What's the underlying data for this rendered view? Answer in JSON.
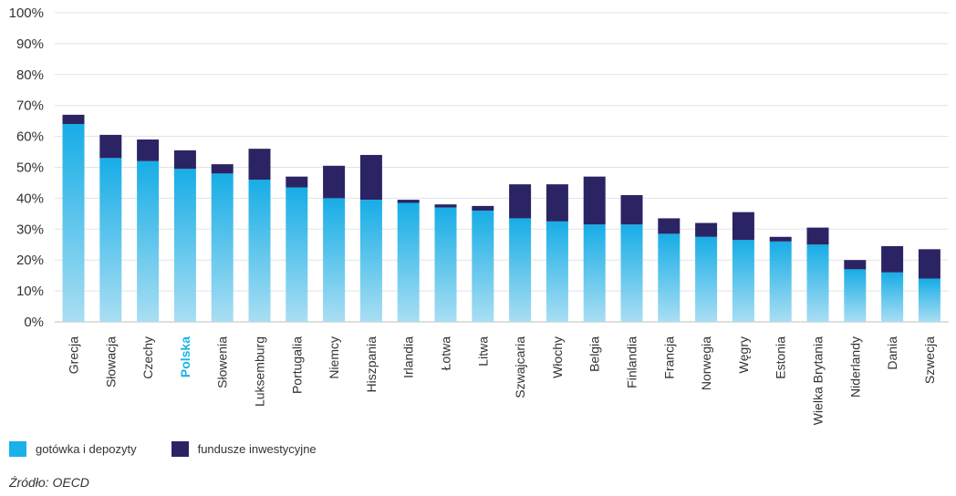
{
  "chart_data": {
    "type": "bar",
    "stacked": true,
    "categories": [
      "Grecja",
      "Słowacja",
      "Czechy",
      "Polska",
      "Słowenia",
      "Luksemburg",
      "Portugalia",
      "Niemcy",
      "Hiszpania",
      "Irlandia",
      "Łotwa",
      "Litwa",
      "Szwajcaria",
      "Włochy",
      "Belgia",
      "Finlandia",
      "Francja",
      "Norwegia",
      "Węgry",
      "Estonia",
      "Wielka Brytania",
      "Niderlandy",
      "Dania",
      "Szwecja"
    ],
    "highlight_category": "Polska",
    "series": [
      {
        "name": "gotówka i depozyty",
        "color": "#1ab0e8",
        "values": [
          64,
          53,
          52,
          49.5,
          48,
          46,
          43.5,
          40,
          39.5,
          38.5,
          37,
          36,
          33.5,
          32.5,
          31.5,
          31.5,
          28.5,
          27.5,
          26.5,
          26,
          25,
          17,
          16,
          14
        ]
      },
      {
        "name": "fundusze inwestycyjne",
        "color": "#2b2464",
        "values": [
          3,
          7.5,
          7,
          6,
          3,
          10,
          3.5,
          10.5,
          14.5,
          1,
          1,
          1.5,
          11,
          12,
          15.5,
          9.5,
          5,
          4.5,
          9,
          1.5,
          5.5,
          3,
          8.5,
          9.5
        ]
      }
    ],
    "yticks": [
      "0%",
      "10%",
      "20%",
      "30%",
      "40%",
      "50%",
      "60%",
      "70%",
      "80%",
      "90%",
      "100%"
    ],
    "ylim": [
      0,
      100
    ],
    "grid": true,
    "legend_position": "bottom-left"
  },
  "legend": {
    "items": [
      {
        "label": "gotówka i depozyty",
        "color": "#1ab0e8"
      },
      {
        "label": "fundusze inwestycyjne",
        "color": "#2b2464"
      }
    ]
  },
  "source": "Źródło: OECD"
}
